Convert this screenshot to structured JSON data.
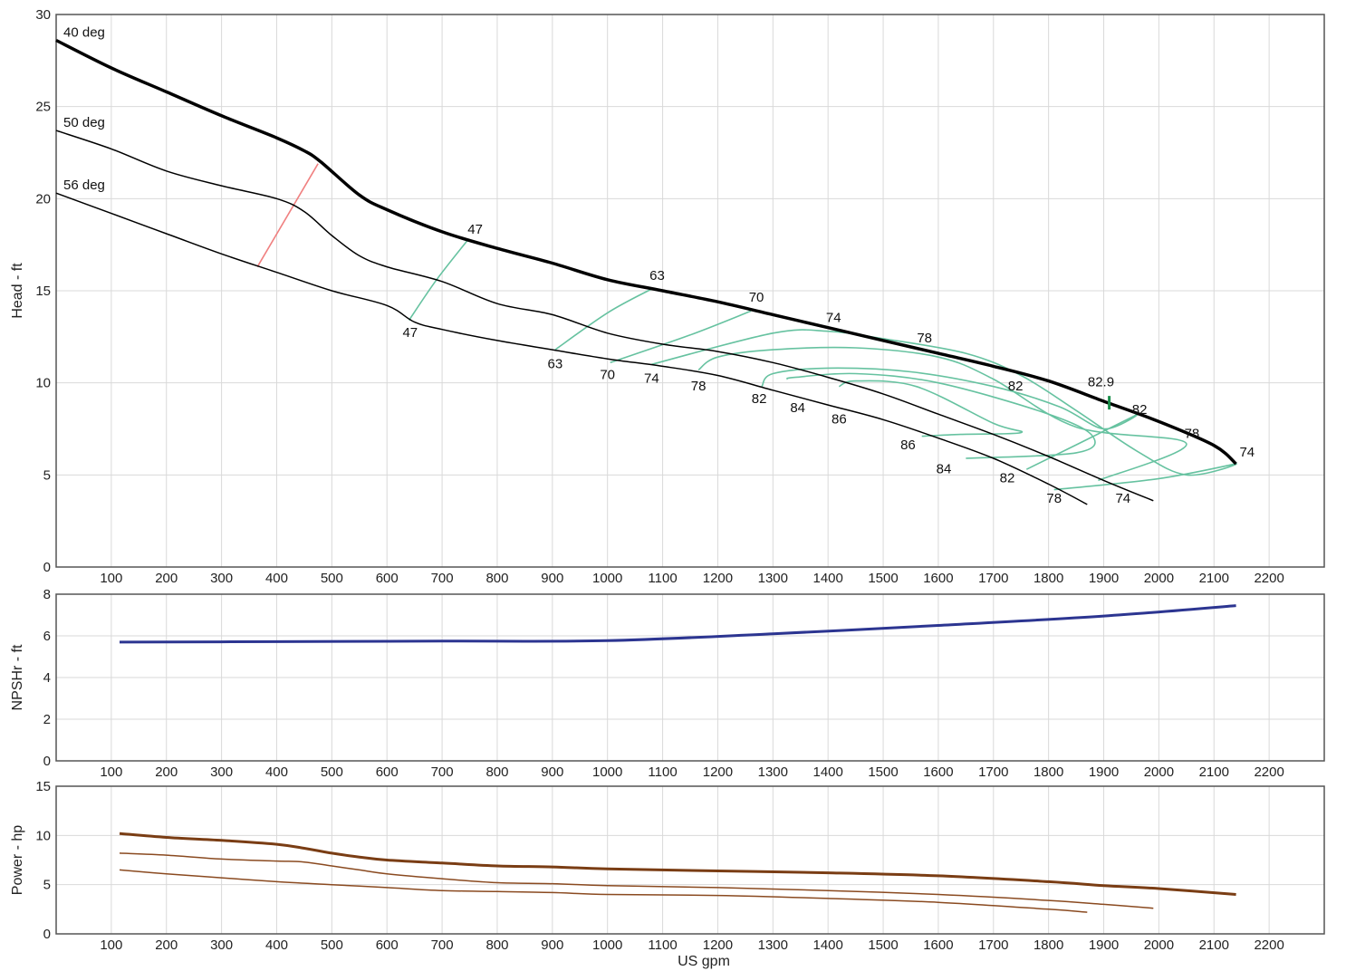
{
  "chart_data": [
    {
      "type": "line",
      "panel": "head",
      "ylabel": "Head - ft",
      "xlim": [
        0,
        2300
      ],
      "ylim": [
        0,
        30
      ],
      "xticks": [
        100,
        200,
        300,
        400,
        500,
        600,
        700,
        800,
        900,
        1000,
        1100,
        1200,
        1300,
        1400,
        1500,
        1600,
        1700,
        1800,
        1900,
        2000,
        2100,
        2200
      ],
      "yticks": [
        0,
        5,
        10,
        15,
        20,
        25,
        30
      ],
      "grid": true,
      "series": [
        {
          "name": "40 deg",
          "label": "40 deg",
          "color": "#000000",
          "width": 3.5,
          "x": [
            0,
            100,
            200,
            300,
            400,
            450,
            480,
            550,
            600,
            700,
            800,
            900,
            1000,
            1100,
            1200,
            1300,
            1400,
            1500,
            1600,
            1700,
            1800,
            1900,
            2000,
            2100,
            2140
          ],
          "y": [
            28.6,
            27.1,
            25.8,
            24.5,
            23.3,
            22.6,
            22.0,
            20.2,
            19.4,
            18.2,
            17.3,
            16.5,
            15.6,
            15.0,
            14.4,
            13.7,
            13.0,
            12.3,
            11.6,
            10.9,
            10.1,
            9.0,
            7.9,
            6.6,
            5.6
          ]
        },
        {
          "name": "50 deg",
          "label": "50 deg",
          "color": "#000000",
          "width": 1.5,
          "x": [
            0,
            100,
            200,
            300,
            400,
            450,
            500,
            550,
            600,
            700,
            800,
            900,
            1000,
            1100,
            1200,
            1300,
            1400,
            1500,
            1600,
            1700,
            1800,
            1900,
            1990
          ],
          "y": [
            23.7,
            22.7,
            21.5,
            20.7,
            20.0,
            19.3,
            18.0,
            16.9,
            16.3,
            15.5,
            14.3,
            13.7,
            12.7,
            12.1,
            11.7,
            11.1,
            10.3,
            9.4,
            8.3,
            7.2,
            6.0,
            4.7,
            3.6
          ]
        },
        {
          "name": "56 deg",
          "label": "56 deg",
          "color": "#000000",
          "width": 1.5,
          "x": [
            0,
            100,
            200,
            300,
            400,
            500,
            600,
            650,
            700,
            800,
            900,
            1000,
            1100,
            1200,
            1300,
            1400,
            1500,
            1600,
            1700,
            1800,
            1870
          ],
          "y": [
            20.3,
            19.2,
            18.1,
            17.0,
            16.0,
            15.0,
            14.2,
            13.3,
            12.9,
            12.3,
            11.8,
            11.3,
            10.9,
            10.4,
            9.6,
            8.8,
            8.0,
            7.0,
            5.9,
            4.5,
            3.4
          ]
        }
      ],
      "efficiency_contours": [
        {
          "value": "47",
          "color": "#66c2a0",
          "x": [
            640,
            690,
            745
          ],
          "y": [
            13.4,
            15.6,
            17.7
          ]
        },
        {
          "value": "63",
          "color": "#66c2a0",
          "x": [
            905,
            1000,
            1080
          ],
          "y": [
            11.8,
            13.8,
            15.1
          ]
        },
        {
          "value": "70",
          "color": "#66c2a0",
          "x": [
            1005,
            1150,
            1260
          ],
          "y": [
            11.1,
            12.6,
            13.9
          ]
        },
        {
          "value": "74",
          "color": "#66c2a0",
          "x": [
            1080,
            1300,
            1400,
            1500,
            1650,
            1750,
            1850,
            1960,
            2050,
            2140,
            2000,
            1810
          ],
          "y": [
            11.0,
            12.7,
            12.8,
            12.4,
            11.6,
            10.4,
            8.5,
            6.3,
            5.0,
            5.6,
            4.8,
            4.2
          ]
        },
        {
          "value": "78",
          "color": "#66c2a0",
          "x": [
            1165,
            1200,
            1300,
            1450,
            1600,
            1700,
            1850,
            2050,
            1890
          ],
          "y": [
            10.7,
            11.4,
            11.8,
            11.9,
            11.4,
            10.2,
            7.6,
            6.7,
            4.7
          ]
        },
        {
          "value": "82",
          "color": "#66c2a0",
          "x": [
            1280,
            1300,
            1400,
            1550,
            1700,
            1820,
            1900,
            1955,
            1760
          ],
          "y": [
            9.8,
            10.5,
            10.8,
            10.6,
            9.8,
            8.7,
            7.5,
            8.2,
            5.3
          ]
        },
        {
          "value": "84",
          "color": "#66c2a0",
          "x": [
            1325,
            1340,
            1450,
            1600,
            1800,
            1880,
            1850,
            1650
          ],
          "y": [
            10.2,
            10.3,
            10.5,
            10.0,
            8.3,
            7.1,
            6.2,
            5.9
          ]
        },
        {
          "value": "86",
          "color": "#66c2a0",
          "x": [
            1420,
            1450,
            1560,
            1700,
            1750,
            1640,
            1570
          ],
          "y": [
            9.8,
            10.1,
            9.8,
            7.8,
            7.3,
            7.2,
            7.1
          ]
        }
      ],
      "annotations": [
        {
          "text": "47",
          "x": 760,
          "y": 18.1
        },
        {
          "text": "47",
          "x": 642,
          "y": 12.5
        },
        {
          "text": "63",
          "x": 1090,
          "y": 15.6
        },
        {
          "text": "63",
          "x": 905,
          "y": 10.8
        },
        {
          "text": "70",
          "x": 1270,
          "y": 14.4
        },
        {
          "text": "70",
          "x": 1000,
          "y": 10.2
        },
        {
          "text": "74",
          "x": 1410,
          "y": 13.3
        },
        {
          "text": "74",
          "x": 1080,
          "y": 10.0
        },
        {
          "text": "74",
          "x": 2160,
          "y": 6.0
        },
        {
          "text": "74",
          "x": 1935,
          "y": 3.5
        },
        {
          "text": "78",
          "x": 1575,
          "y": 12.2
        },
        {
          "text": "78",
          "x": 1165,
          "y": 9.6
        },
        {
          "text": "78",
          "x": 2060,
          "y": 7.0
        },
        {
          "text": "78",
          "x": 1810,
          "y": 3.5
        },
        {
          "text": "82",
          "x": 1740,
          "y": 9.6
        },
        {
          "text": "82",
          "x": 1275,
          "y": 8.9
        },
        {
          "text": "82",
          "x": 1965,
          "y": 8.3
        },
        {
          "text": "82",
          "x": 1725,
          "y": 4.6
        },
        {
          "text": "84",
          "x": 1345,
          "y": 8.4
        },
        {
          "text": "84",
          "x": 1610,
          "y": 5.1
        },
        {
          "text": "86",
          "x": 1420,
          "y": 7.8
        },
        {
          "text": "86",
          "x": 1545,
          "y": 6.4
        },
        {
          "text": "82.9",
          "x": 1895,
          "y": 9.8
        }
      ],
      "bep_marker": {
        "x": 1910,
        "y": 8.6,
        "color": "#1a8f4a"
      },
      "power_limit_line": {
        "color": "#f08080",
        "x": [
          365,
          475
        ],
        "y": [
          16.3,
          21.9
        ]
      }
    },
    {
      "type": "line",
      "panel": "npsh",
      "ylabel": "NPSHr - ft",
      "xlim": [
        0,
        2300
      ],
      "ylim": [
        0,
        8
      ],
      "xticks": [
        100,
        200,
        300,
        400,
        500,
        600,
        700,
        800,
        900,
        1000,
        1100,
        1200,
        1300,
        1400,
        1500,
        1600,
        1700,
        1800,
        1900,
        2000,
        2100,
        2200
      ],
      "yticks": [
        0,
        2,
        4,
        6,
        8
      ],
      "grid": true,
      "series": [
        {
          "color": "#2c3591",
          "width": 3,
          "x": [
            115,
            400,
            700,
            1000,
            1300,
            1600,
            1900,
            2140
          ],
          "y": [
            5.7,
            5.72,
            5.75,
            5.77,
            6.1,
            6.5,
            6.95,
            7.45
          ]
        }
      ]
    },
    {
      "type": "line",
      "panel": "power",
      "ylabel": "Power - hp",
      "xlabel": "US gpm",
      "xlim": [
        0,
        2300
      ],
      "ylim": [
        0,
        15
      ],
      "xticks": [
        100,
        200,
        300,
        400,
        500,
        600,
        700,
        800,
        900,
        1000,
        1100,
        1200,
        1300,
        1400,
        1500,
        1600,
        1700,
        1800,
        1900,
        2000,
        2100,
        2200
      ],
      "yticks": [
        0,
        5,
        10,
        15
      ],
      "grid": true,
      "series": [
        {
          "color": "#7a3d14",
          "width": 3,
          "x": [
            115,
            200,
            300,
            400,
            450,
            500,
            550,
            600,
            700,
            800,
            900,
            1000,
            1200,
            1400,
            1600,
            1800,
            1900,
            2000,
            2140
          ],
          "y": [
            10.2,
            9.8,
            9.5,
            9.1,
            8.7,
            8.2,
            7.8,
            7.5,
            7.2,
            6.9,
            6.8,
            6.6,
            6.4,
            6.2,
            5.9,
            5.3,
            4.9,
            4.6,
            4.0
          ]
        },
        {
          "color": "#8a4a20",
          "width": 1.5,
          "x": [
            115,
            200,
            300,
            400,
            450,
            500,
            550,
            600,
            700,
            800,
            900,
            1000,
            1200,
            1400,
            1600,
            1800,
            1900,
            1990
          ],
          "y": [
            8.2,
            8.0,
            7.6,
            7.4,
            7.3,
            6.9,
            6.5,
            6.1,
            5.6,
            5.2,
            5.1,
            4.9,
            4.7,
            4.4,
            4.0,
            3.4,
            3.0,
            2.6
          ]
        },
        {
          "color": "#8a4a20",
          "width": 1.5,
          "x": [
            115,
            200,
            300,
            400,
            500,
            600,
            700,
            800,
            900,
            1000,
            1200,
            1400,
            1600,
            1800,
            1870
          ],
          "y": [
            6.5,
            6.1,
            5.7,
            5.3,
            5.0,
            4.7,
            4.4,
            4.3,
            4.2,
            4.0,
            3.9,
            3.6,
            3.2,
            2.5,
            2.2
          ]
        }
      ]
    }
  ]
}
